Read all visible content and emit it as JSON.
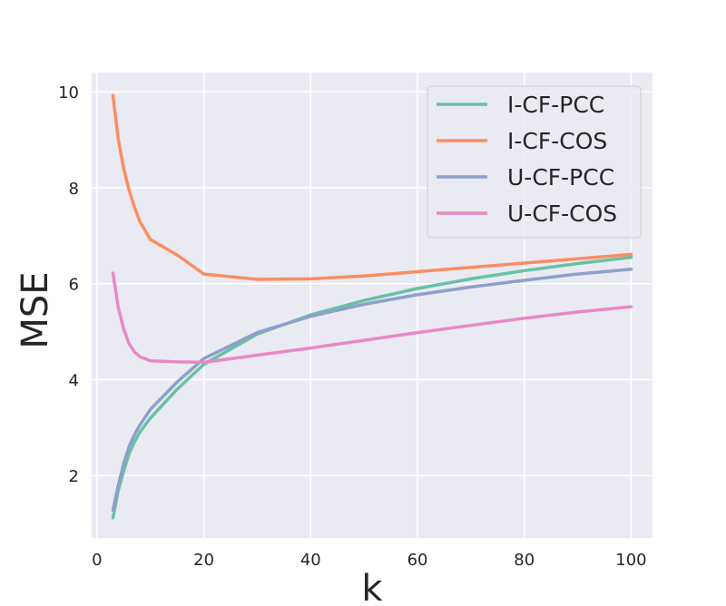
{
  "chart_data": {
    "type": "line",
    "title": "",
    "xlabel": "k",
    "ylabel": "MSE",
    "xlim": [
      -1,
      104
    ],
    "ylim": [
      0.7,
      10.4
    ],
    "xticks": [
      0,
      20,
      40,
      60,
      80,
      100
    ],
    "yticks": [
      2,
      4,
      6,
      8,
      10
    ],
    "grid": true,
    "legend_position": "top-right",
    "series": [
      {
        "name": "I-CF-PCC",
        "color": "#66c2a5",
        "x": [
          3,
          4,
          5,
          6,
          7,
          8,
          10,
          15,
          20,
          30,
          40,
          50,
          60,
          70,
          80,
          90,
          100
        ],
        "y": [
          1.12,
          1.7,
          2.1,
          2.45,
          2.7,
          2.9,
          3.2,
          3.8,
          4.32,
          4.95,
          5.35,
          5.65,
          5.9,
          6.1,
          6.27,
          6.42,
          6.55
        ]
      },
      {
        "name": "I-CF-COS",
        "color": "#fc8d62",
        "x": [
          3,
          4,
          5,
          6,
          7,
          8,
          10,
          15,
          20,
          30,
          40,
          50,
          60,
          70,
          80,
          90,
          100
        ],
        "y": [
          9.92,
          9.0,
          8.4,
          7.95,
          7.6,
          7.3,
          6.92,
          6.6,
          6.2,
          6.09,
          6.1,
          6.16,
          6.25,
          6.34,
          6.43,
          6.52,
          6.61
        ]
      },
      {
        "name": "U-CF-PCC",
        "color": "#8da0cb",
        "x": [
          3,
          4,
          5,
          6,
          7,
          8,
          10,
          15,
          20,
          30,
          40,
          50,
          60,
          70,
          80,
          90,
          100
        ],
        "y": [
          1.28,
          1.8,
          2.25,
          2.6,
          2.85,
          3.05,
          3.38,
          3.95,
          4.44,
          4.98,
          5.32,
          5.57,
          5.77,
          5.93,
          6.07,
          6.2,
          6.3
        ]
      },
      {
        "name": "U-CF-COS",
        "color": "#e78ac3",
        "x": [
          3,
          4,
          5,
          6,
          7,
          8,
          10,
          15,
          20,
          30,
          40,
          50,
          60,
          70,
          80,
          90,
          100
        ],
        "y": [
          6.22,
          5.5,
          5.05,
          4.75,
          4.58,
          4.48,
          4.39,
          4.37,
          4.36,
          4.51,
          4.66,
          4.82,
          4.98,
          5.13,
          5.28,
          5.41,
          5.52
        ]
      }
    ]
  }
}
